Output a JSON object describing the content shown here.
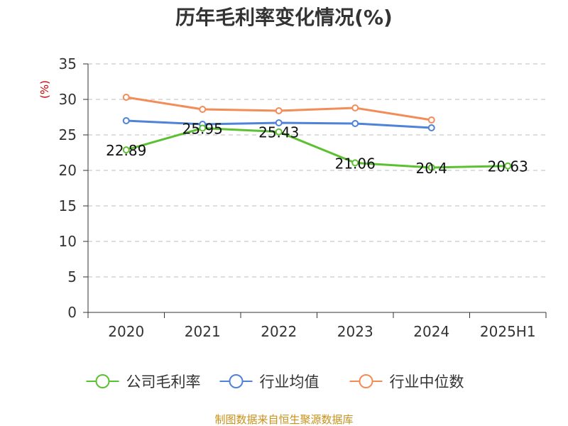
{
  "chart_data": {
    "type": "line",
    "title": "历年毛利率变化情况(%)",
    "unit_label": "(%)",
    "categories": [
      "2020",
      "2021",
      "2022",
      "2023",
      "2024",
      "2025H1"
    ],
    "ylim": [
      0,
      35
    ],
    "yticks": [
      0,
      5,
      10,
      15,
      20,
      25,
      30,
      35
    ],
    "grid": true,
    "legend_position": "bottom",
    "series": [
      {
        "name": "公司毛利率",
        "color": "#5cc132",
        "values": [
          22.89,
          25.95,
          25.43,
          21.06,
          20.4,
          20.63
        ],
        "labels": [
          "22.89",
          "25.95",
          "25.43",
          "21.06",
          "20.4",
          "20.63"
        ]
      },
      {
        "name": "行业均值",
        "color": "#4f82d9",
        "values": [
          27.0,
          26.5,
          26.7,
          26.6,
          26.0,
          null
        ]
      },
      {
        "name": "行业中位数",
        "color": "#f48c58",
        "values": [
          30.3,
          28.6,
          28.4,
          28.8,
          27.1,
          null
        ]
      }
    ],
    "source": "制图数据来自恒生聚源数据库"
  }
}
